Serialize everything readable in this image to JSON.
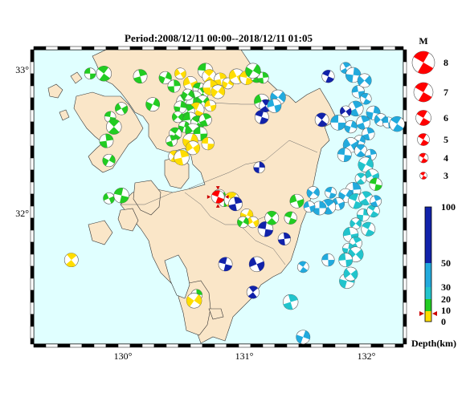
{
  "title": "Period:2008/12/11 00:00--2018/12/11 01:05",
  "axes": {
    "lon_ticks": [
      "130°",
      "131°",
      "132°"
    ],
    "lat_ticks": [
      "33°",
      "32°"
    ]
  },
  "magnitude_legend": {
    "header": "M",
    "values": [
      "8",
      "7",
      "6",
      "5",
      "4",
      "3"
    ]
  },
  "depth_legend": {
    "title": "Depth(km)",
    "ticks": [
      "100",
      "50",
      "30",
      "20",
      "10",
      "0"
    ],
    "colors": {
      "shallow": "#ffdd00",
      "mid": "#22cc22",
      "deep": "#22aadd",
      "deeper": "#22c4cc",
      "deepest": "#1122aa",
      "current": "#ff0000"
    }
  },
  "colors": {
    "sea": "#e0ffff",
    "land": "#fae6c8",
    "border": "#000000"
  },
  "chart_data": {
    "type": "scatter",
    "title": "Period:2008/12/11 00:00--2018/12/11 01:05",
    "x_range": [
      129.35,
      132.3
    ],
    "y_range": [
      31.0,
      33.1
    ],
    "x_ticks": [
      130,
      131,
      132
    ],
    "y_ticks": [
      32,
      33
    ],
    "latest_event": {
      "lon": 130.82,
      "lat": 32.05,
      "depth_class": "current"
    },
    "events": [
      {
        "lon": 129.8,
        "lat": 32.93,
        "d": "mid"
      },
      {
        "lon": 129.91,
        "lat": 32.93,
        "d": "mid"
      },
      {
        "lon": 130.2,
        "lat": 32.91,
        "d": "mid"
      },
      {
        "lon": 130.4,
        "lat": 32.9,
        "d": "mid"
      },
      {
        "lon": 130.52,
        "lat": 32.93,
        "d": "shallow"
      },
      {
        "lon": 130.72,
        "lat": 32.95,
        "d": "mid"
      },
      {
        "lon": 130.75,
        "lat": 32.91,
        "d": "shallow"
      },
      {
        "lon": 130.84,
        "lat": 32.89,
        "d": "shallow"
      },
      {
        "lon": 130.9,
        "lat": 32.86,
        "d": "shallow"
      },
      {
        "lon": 130.97,
        "lat": 32.91,
        "d": "shallow"
      },
      {
        "lon": 131.05,
        "lat": 32.9,
        "d": "shallow"
      },
      {
        "lon": 131.13,
        "lat": 32.91,
        "d": "mid"
      },
      {
        "lon": 131.18,
        "lat": 32.9,
        "d": "mid"
      },
      {
        "lon": 131.1,
        "lat": 32.95,
        "d": "mid"
      },
      {
        "lon": 130.6,
        "lat": 32.86,
        "d": "shallow"
      },
      {
        "lon": 130.67,
        "lat": 32.82,
        "d": "mid"
      },
      {
        "lon": 130.7,
        "lat": 32.79,
        "d": "mid"
      },
      {
        "lon": 130.76,
        "lat": 32.83,
        "d": "shallow"
      },
      {
        "lon": 130.82,
        "lat": 32.8,
        "d": "shallow"
      },
      {
        "lon": 130.64,
        "lat": 32.76,
        "d": "mid"
      },
      {
        "lon": 130.58,
        "lat": 32.75,
        "d": "mid"
      },
      {
        "lon": 130.55,
        "lat": 32.73,
        "d": "mid"
      },
      {
        "lon": 130.62,
        "lat": 32.71,
        "d": "mid"
      },
      {
        "lon": 130.7,
        "lat": 32.73,
        "d": "mid"
      },
      {
        "lon": 130.76,
        "lat": 32.7,
        "d": "shallow"
      },
      {
        "lon": 130.65,
        "lat": 32.67,
        "d": "shallow"
      },
      {
        "lon": 130.58,
        "lat": 32.66,
        "d": "mid"
      },
      {
        "lon": 130.52,
        "lat": 32.69,
        "d": "mid"
      },
      {
        "lon": 130.5,
        "lat": 32.62,
        "d": "mid"
      },
      {
        "lon": 130.6,
        "lat": 32.6,
        "d": "mid"
      },
      {
        "lon": 130.66,
        "lat": 32.58,
        "d": "mid"
      },
      {
        "lon": 130.72,
        "lat": 32.6,
        "d": "mid"
      },
      {
        "lon": 130.55,
        "lat": 32.55,
        "d": "mid"
      },
      {
        "lon": 130.62,
        "lat": 32.52,
        "d": "mid"
      },
      {
        "lon": 130.68,
        "lat": 32.5,
        "d": "mid"
      },
      {
        "lon": 130.48,
        "lat": 32.5,
        "d": "mid"
      },
      {
        "lon": 130.45,
        "lat": 32.45,
        "d": "mid"
      },
      {
        "lon": 130.6,
        "lat": 32.45,
        "d": "shallow"
      },
      {
        "lon": 130.62,
        "lat": 32.4,
        "d": "shallow"
      },
      {
        "lon": 130.74,
        "lat": 32.43,
        "d": "shallow"
      },
      {
        "lon": 130.47,
        "lat": 32.34,
        "d": "shallow"
      },
      {
        "lon": 130.53,
        "lat": 32.33,
        "d": "shallow"
      },
      {
        "lon": 130.3,
        "lat": 32.71,
        "d": "mid"
      },
      {
        "lon": 130.05,
        "lat": 32.68,
        "d": "mid"
      },
      {
        "lon": 129.96,
        "lat": 32.62,
        "d": "mid"
      },
      {
        "lon": 129.99,
        "lat": 32.55,
        "d": "mid"
      },
      {
        "lon": 129.93,
        "lat": 32.45,
        "d": "mid"
      },
      {
        "lon": 129.95,
        "lat": 32.31,
        "d": "mid"
      },
      {
        "lon": 129.95,
        "lat": 32.04,
        "d": "mid"
      },
      {
        "lon": 130.05,
        "lat": 32.06,
        "d": "mid"
      },
      {
        "lon": 129.65,
        "lat": 31.6,
        "d": "shallow"
      },
      {
        "lon": 130.47,
        "lat": 32.84,
        "d": "mid"
      },
      {
        "lon": 130.58,
        "lat": 32.78,
        "d": "mid"
      },
      {
        "lon": 131.17,
        "lat": 32.73,
        "d": "mid"
      },
      {
        "lon": 131.17,
        "lat": 32.62,
        "d": "deepest"
      },
      {
        "lon": 131.2,
        "lat": 32.7,
        "d": "deepest"
      },
      {
        "lon": 131.15,
        "lat": 32.26,
        "d": "deepest"
      },
      {
        "lon": 131.3,
        "lat": 32.76,
        "d": "deep"
      },
      {
        "lon": 131.27,
        "lat": 32.7,
        "d": "deep"
      },
      {
        "lon": 131.7,
        "lat": 32.91,
        "d": "deepest"
      },
      {
        "lon": 131.84,
        "lat": 32.97,
        "d": "deep"
      },
      {
        "lon": 131.9,
        "lat": 32.92,
        "d": "deep"
      },
      {
        "lon": 131.99,
        "lat": 32.88,
        "d": "deep"
      },
      {
        "lon": 131.94,
        "lat": 32.8,
        "d": "deep"
      },
      {
        "lon": 132.0,
        "lat": 32.75,
        "d": "deep"
      },
      {
        "lon": 131.92,
        "lat": 32.68,
        "d": "deep"
      },
      {
        "lon": 132.06,
        "lat": 32.65,
        "d": "deep"
      },
      {
        "lon": 132.12,
        "lat": 32.6,
        "d": "deep"
      },
      {
        "lon": 132.18,
        "lat": 32.58,
        "d": "deep"
      },
      {
        "lon": 132.25,
        "lat": 32.57,
        "d": "deep"
      },
      {
        "lon": 131.98,
        "lat": 32.58,
        "d": "deep"
      },
      {
        "lon": 131.88,
        "lat": 32.55,
        "d": "deep"
      },
      {
        "lon": 131.84,
        "lat": 32.66,
        "d": "deepest"
      },
      {
        "lon": 131.78,
        "lat": 32.58,
        "d": "deep"
      },
      {
        "lon": 131.65,
        "lat": 32.6,
        "d": "deepest"
      },
      {
        "lon": 132.02,
        "lat": 32.5,
        "d": "deep"
      },
      {
        "lon": 131.95,
        "lat": 32.45,
        "d": "deep"
      },
      {
        "lon": 131.88,
        "lat": 32.42,
        "d": "deep"
      },
      {
        "lon": 131.83,
        "lat": 32.35,
        "d": "deep"
      },
      {
        "lon": 131.96,
        "lat": 32.38,
        "d": "deep"
      },
      {
        "lon": 132.04,
        "lat": 32.35,
        "d": "deep"
      },
      {
        "lon": 132.0,
        "lat": 32.28,
        "d": "deeper"
      },
      {
        "lon": 132.05,
        "lat": 32.2,
        "d": "deeper"
      },
      {
        "lon": 132.08,
        "lat": 32.14,
        "d": "mid"
      },
      {
        "lon": 131.96,
        "lat": 32.18,
        "d": "deeper"
      },
      {
        "lon": 131.9,
        "lat": 32.1,
        "d": "deep"
      },
      {
        "lon": 131.84,
        "lat": 32.06,
        "d": "deep"
      },
      {
        "lon": 131.78,
        "lat": 32.0,
        "d": "deep"
      },
      {
        "lon": 131.72,
        "lat": 32.08,
        "d": "deep"
      },
      {
        "lon": 131.7,
        "lat": 31.98,
        "d": "deep"
      },
      {
        "lon": 131.63,
        "lat": 31.97,
        "d": "deep"
      },
      {
        "lon": 131.58,
        "lat": 32.08,
        "d": "deep"
      },
      {
        "lon": 131.55,
        "lat": 31.98,
        "d": "deep"
      },
      {
        "lon": 131.92,
        "lat": 32.02,
        "d": "deeper"
      },
      {
        "lon": 132.0,
        "lat": 32.04,
        "d": "deeper"
      },
      {
        "lon": 131.98,
        "lat": 31.92,
        "d": "deeper"
      },
      {
        "lon": 131.92,
        "lat": 31.86,
        "d": "deeper"
      },
      {
        "lon": 131.88,
        "lat": 31.78,
        "d": "deeper"
      },
      {
        "lon": 132.02,
        "lat": 31.82,
        "d": "deeper"
      },
      {
        "lon": 131.92,
        "lat": 31.72,
        "d": "deeper"
      },
      {
        "lon": 131.86,
        "lat": 31.68,
        "d": "deeper"
      },
      {
        "lon": 131.92,
        "lat": 31.64,
        "d": "deeper"
      },
      {
        "lon": 131.84,
        "lat": 31.6,
        "d": "deeper"
      },
      {
        "lon": 132.06,
        "lat": 31.95,
        "d": "deeper"
      },
      {
        "lon": 132.08,
        "lat": 32.02,
        "d": "deep"
      },
      {
        "lon": 131.85,
        "lat": 31.45,
        "d": "deeper"
      },
      {
        "lon": 131.88,
        "lat": 31.5,
        "d": "deeper"
      },
      {
        "lon": 131.7,
        "lat": 31.6,
        "d": "deep"
      },
      {
        "lon": 131.5,
        "lat": 31.55,
        "d": "deep"
      },
      {
        "lon": 131.4,
        "lat": 31.3,
        "d": "deeper"
      },
      {
        "lon": 131.5,
        "lat": 31.05,
        "d": "deep"
      },
      {
        "lon": 130.83,
        "lat": 32.06,
        "d": "mid"
      },
      {
        "lon": 130.87,
        "lat": 32.02,
        "d": "mid"
      },
      {
        "lon": 130.93,
        "lat": 32.03,
        "d": "shallow"
      },
      {
        "lon": 130.96,
        "lat": 32.0,
        "d": "deepest"
      },
      {
        "lon": 131.05,
        "lat": 31.92,
        "d": "shallow"
      },
      {
        "lon": 131.1,
        "lat": 31.87,
        "d": "shallow"
      },
      {
        "lon": 131.2,
        "lat": 31.82,
        "d": "deepest"
      },
      {
        "lon": 131.25,
        "lat": 31.9,
        "d": "mid"
      },
      {
        "lon": 131.35,
        "lat": 31.75,
        "d": "deepest"
      },
      {
        "lon": 131.02,
        "lat": 31.87,
        "d": "mid"
      },
      {
        "lon": 131.13,
        "lat": 31.57,
        "d": "deepest"
      },
      {
        "lon": 130.88,
        "lat": 31.57,
        "d": "deepest"
      },
      {
        "lon": 131.1,
        "lat": 31.37,
        "d": "deepest"
      },
      {
        "lon": 130.65,
        "lat": 31.35,
        "d": "mid"
      },
      {
        "lon": 130.63,
        "lat": 31.31,
        "d": "shallow"
      },
      {
        "lon": 131.45,
        "lat": 32.02,
        "d": "mid"
      },
      {
        "lon": 131.4,
        "lat": 31.9,
        "d": "mid"
      }
    ]
  }
}
